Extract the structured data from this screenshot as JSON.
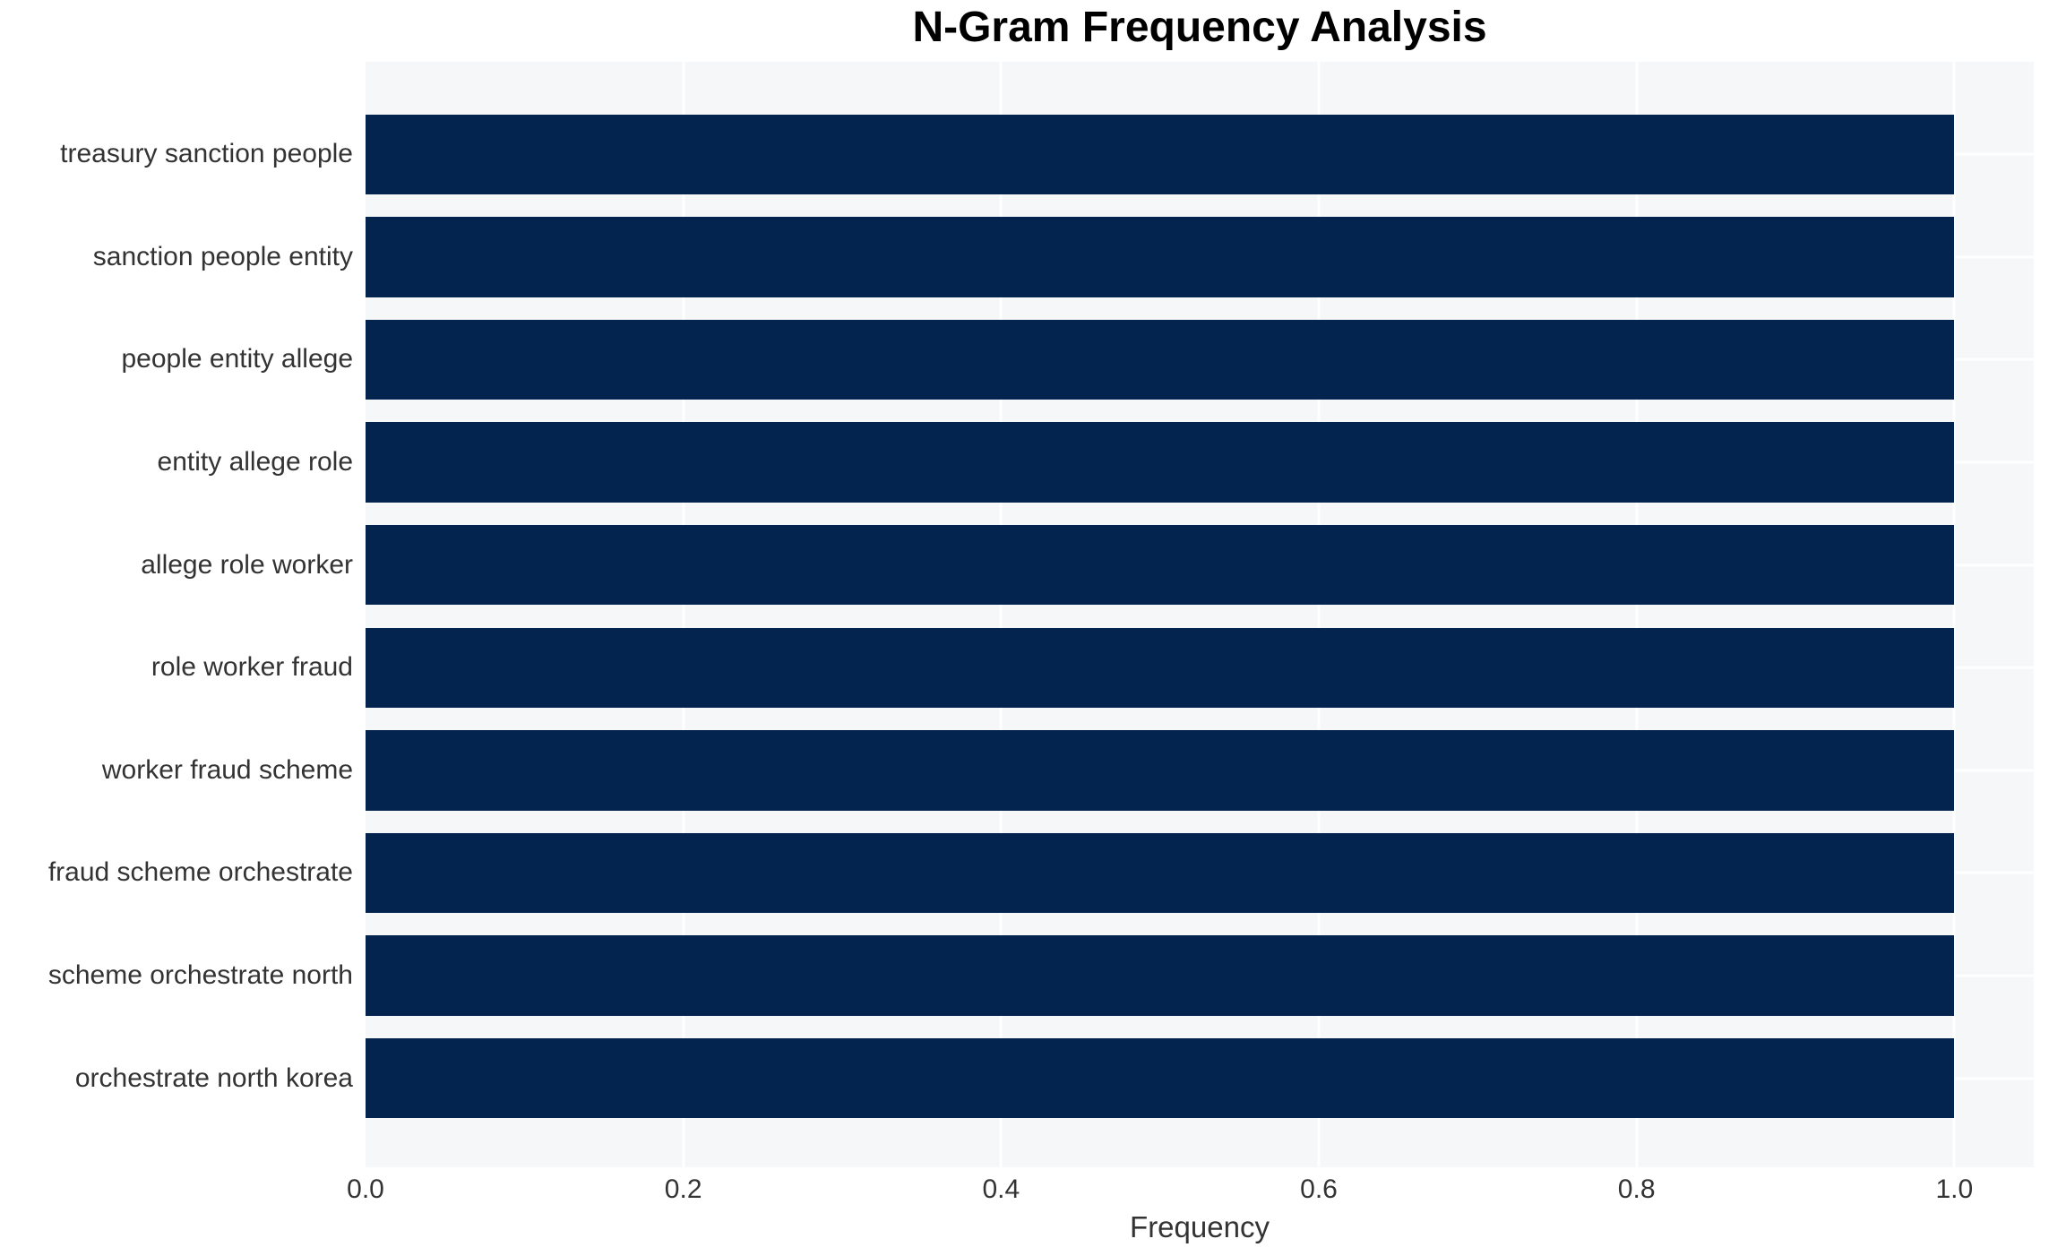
{
  "chart_data": {
    "type": "bar",
    "orientation": "horizontal",
    "title": "N-Gram Frequency Analysis",
    "xlabel": "Frequency",
    "ylabel": "",
    "categories": [
      "treasury sanction people",
      "sanction people entity",
      "people entity allege",
      "entity allege role",
      "allege role worker",
      "role worker fraud",
      "worker fraud scheme",
      "fraud scheme orchestrate",
      "scheme orchestrate north",
      "orchestrate north korea"
    ],
    "values": [
      1.0,
      1.0,
      1.0,
      1.0,
      1.0,
      1.0,
      1.0,
      1.0,
      1.0,
      1.0
    ],
    "xlim": [
      0.0,
      1.05
    ],
    "xticks": [
      0.0,
      0.2,
      0.4,
      0.6,
      0.8,
      1.0
    ],
    "xtick_labels": [
      "0.0",
      "0.2",
      "0.4",
      "0.6",
      "0.8",
      "1.0"
    ],
    "grid": true,
    "grid_style": "white lines on light gray plot background, drawn beneath bars",
    "legend": false,
    "colors": {
      "bar": "#03244e",
      "plot_background": "#f6f7f8",
      "grid": "#ffffff",
      "tick_text": "#333333",
      "title_text": "#000000"
    }
  }
}
